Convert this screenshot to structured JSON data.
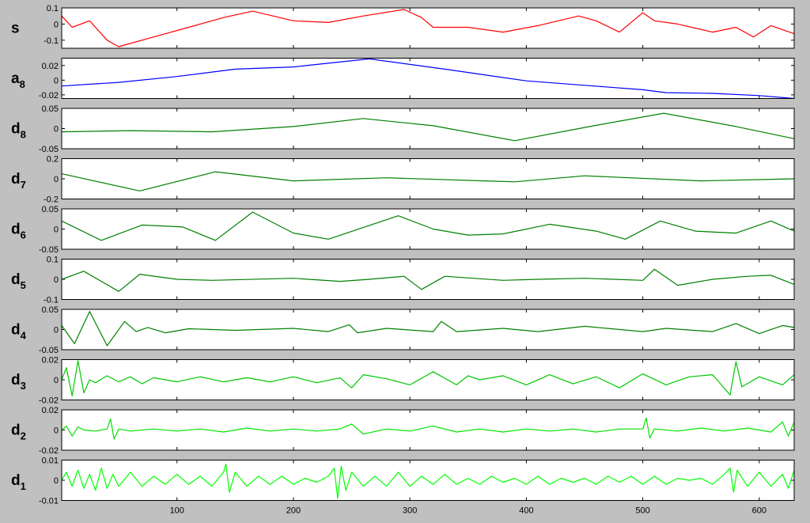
{
  "figure": {
    "background": "#c0c0c0",
    "axes_background": "#ffffff",
    "x_ticks": [
      100,
      200,
      300,
      400,
      500,
      600
    ],
    "x_range": [
      1,
      630
    ]
  },
  "chart_data": [
    {
      "type": "line",
      "label_main": "s",
      "label_sub": "",
      "color": "#ff0000",
      "yticks": [
        "0.1",
        "0",
        "-0.1"
      ],
      "ytick_values": [
        0.1,
        0,
        -0.1
      ],
      "ylim": [
        -0.15,
        0.1
      ],
      "xlim": [
        1,
        630
      ],
      "x": [
        1,
        10,
        25,
        40,
        50,
        80,
        110,
        140,
        165,
        200,
        230,
        260,
        295,
        310,
        320,
        350,
        380,
        410,
        445,
        460,
        480,
        500,
        510,
        530,
        560,
        580,
        595,
        610,
        630
      ],
      "y": [
        0.05,
        -0.02,
        0.02,
        -0.1,
        -0.14,
        -0.08,
        -0.02,
        0.04,
        0.08,
        0.02,
        0.01,
        0.05,
        0.09,
        0.04,
        -0.02,
        -0.02,
        -0.05,
        -0.01,
        0.05,
        0.02,
        -0.05,
        0.07,
        0.02,
        0.0,
        -0.05,
        -0.02,
        -0.08,
        -0.01,
        -0.06
      ]
    },
    {
      "type": "line",
      "label_main": "a",
      "label_sub": "8",
      "color": "#0000ff",
      "yticks": [
        "0.02",
        "0",
        "-0.02"
      ],
      "ytick_values": [
        0.02,
        0,
        -0.02
      ],
      "ylim": [
        -0.025,
        0.03
      ],
      "xlim": [
        1,
        630
      ],
      "x": [
        1,
        50,
        100,
        150,
        200,
        265,
        330,
        400,
        450,
        500,
        520,
        560,
        600,
        630
      ],
      "y": [
        -0.008,
        -0.003,
        0.005,
        0.015,
        0.018,
        0.029,
        0.015,
        -0.001,
        -0.007,
        -0.013,
        -0.017,
        -0.018,
        -0.021,
        -0.025
      ]
    },
    {
      "type": "line",
      "label_main": "d",
      "label_sub": "8",
      "color": "#008000",
      "yticks": [
        "0.05",
        "0",
        "-0.05"
      ],
      "ytick_values": [
        0.05,
        0,
        -0.05
      ],
      "ylim": [
        -0.05,
        0.05
      ],
      "xlim": [
        1,
        630
      ],
      "x": [
        1,
        60,
        130,
        200,
        260,
        320,
        390,
        460,
        518,
        580,
        630
      ],
      "y": [
        -0.008,
        -0.005,
        -0.008,
        0.005,
        0.025,
        0.007,
        -0.03,
        0.008,
        0.038,
        0.005,
        -0.025
      ]
    },
    {
      "type": "line",
      "label_main": "d",
      "label_sub": "7",
      "color": "#008000",
      "yticks": [
        "0.2",
        "0",
        "-0.2"
      ],
      "ytick_values": [
        0.2,
        0,
        -0.2
      ],
      "ylim": [
        -0.2,
        0.2
      ],
      "xlim": [
        1,
        630
      ],
      "x": [
        1,
        68,
        133,
        200,
        280,
        390,
        450,
        550,
        630
      ],
      "y": [
        0.05,
        -0.12,
        0.07,
        -0.02,
        0.01,
        -0.03,
        0.03,
        -0.02,
        0.0
      ]
    },
    {
      "type": "line",
      "label_main": "d",
      "label_sub": "6",
      "color": "#008000",
      "yticks": [
        "0.05",
        "0",
        "-0.05"
      ],
      "ytick_values": [
        0.05,
        0,
        -0.05
      ],
      "ylim": [
        -0.05,
        0.05
      ],
      "xlim": [
        1,
        630
      ],
      "x": [
        1,
        35,
        70,
        105,
        133,
        165,
        200,
        230,
        290,
        320,
        350,
        380,
        420,
        460,
        485,
        515,
        545,
        580,
        610,
        630
      ],
      "y": [
        0.02,
        -0.028,
        0.01,
        0.005,
        -0.028,
        0.042,
        -0.01,
        -0.025,
        0.033,
        0.0,
        -0.015,
        -0.012,
        0.012,
        -0.005,
        -0.025,
        0.02,
        -0.005,
        -0.01,
        0.02,
        -0.005
      ]
    },
    {
      "type": "line",
      "label_main": "d",
      "label_sub": "5",
      "color": "#008000",
      "yticks": [
        "0.1",
        "0",
        "-0.1"
      ],
      "ytick_values": [
        0.1,
        0,
        -0.1
      ],
      "ylim": [
        -0.1,
        0.1
      ],
      "xlim": [
        1,
        630
      ],
      "x": [
        1,
        20,
        50,
        68,
        100,
        130,
        200,
        240,
        265,
        295,
        310,
        330,
        380,
        410,
        450,
        500,
        510,
        530,
        560,
        590,
        610,
        630
      ],
      "y": [
        0.0,
        0.04,
        -0.06,
        0.025,
        0.0,
        -0.005,
        0.005,
        -0.01,
        0.0,
        0.015,
        -0.05,
        0.015,
        -0.005,
        0.0,
        0.005,
        -0.005,
        0.05,
        -0.03,
        0.0,
        0.015,
        0.02,
        -0.025
      ]
    },
    {
      "type": "line",
      "label_main": "d",
      "label_sub": "4",
      "color": "#008000",
      "yticks": [
        "0.05",
        "0",
        "-0.05"
      ],
      "ytick_values": [
        0.05,
        0,
        -0.05
      ],
      "ylim": [
        -0.05,
        0.05
      ],
      "xlim": [
        1,
        630
      ],
      "x": [
        1,
        12,
        25,
        40,
        55,
        65,
        75,
        90,
        110,
        150,
        200,
        230,
        248,
        255,
        280,
        320,
        327,
        340,
        380,
        410,
        450,
        500,
        520,
        560,
        580,
        600,
        620,
        630
      ],
      "y": [
        0.01,
        -0.035,
        0.045,
        -0.04,
        0.02,
        -0.005,
        0.005,
        -0.008,
        0.002,
        -0.002,
        0.003,
        -0.005,
        0.012,
        -0.008,
        0.003,
        -0.005,
        0.02,
        -0.005,
        0.003,
        -0.005,
        0.008,
        -0.005,
        0.003,
        -0.005,
        0.015,
        -0.01,
        0.01,
        0.005
      ]
    },
    {
      "type": "line",
      "label_main": "d",
      "label_sub": "3",
      "color": "#00c800",
      "yticks": [
        "0.02",
        "0",
        "-0.02"
      ],
      "ytick_values": [
        0.02,
        0,
        -0.02
      ],
      "ylim": [
        -0.02,
        0.02
      ],
      "xlim": [
        1,
        630
      ],
      "x": [
        1,
        5,
        10,
        15,
        20,
        25,
        30,
        40,
        50,
        60,
        70,
        80,
        100,
        120,
        140,
        160,
        180,
        200,
        220,
        240,
        250,
        260,
        280,
        300,
        320,
        340,
        350,
        360,
        380,
        400,
        420,
        440,
        460,
        480,
        500,
        520,
        540,
        560,
        575,
        580,
        585,
        600,
        620,
        630
      ],
      "y": [
        0.0,
        0.012,
        -0.016,
        0.019,
        -0.013,
        0.0,
        -0.003,
        0.004,
        -0.002,
        0.003,
        -0.004,
        0.002,
        -0.002,
        0.003,
        -0.002,
        0.002,
        -0.002,
        0.003,
        -0.003,
        0.002,
        -0.008,
        0.005,
        0.001,
        -0.005,
        0.008,
        -0.005,
        0.004,
        0.0,
        0.004,
        -0.005,
        0.005,
        -0.004,
        0.003,
        -0.008,
        0.006,
        -0.005,
        0.003,
        0.005,
        -0.015,
        0.018,
        -0.007,
        0.003,
        -0.005,
        0.005
      ]
    },
    {
      "type": "line",
      "label_main": "d",
      "label_sub": "2",
      "color": "#00e400",
      "yticks": [
        "0.02",
        "0",
        "-0.02"
      ],
      "ytick_values": [
        0.02,
        0,
        -0.02
      ],
      "ylim": [
        -0.02,
        0.02
      ],
      "xlim": [
        1,
        630
      ],
      "x": [
        1,
        5,
        10,
        15,
        20,
        30,
        40,
        43,
        46,
        50,
        60,
        80,
        100,
        120,
        140,
        160,
        180,
        200,
        220,
        240,
        250,
        260,
        280,
        300,
        320,
        340,
        360,
        380,
        400,
        420,
        440,
        460,
        480,
        500,
        503,
        506,
        510,
        530,
        550,
        570,
        590,
        610,
        620,
        625,
        630
      ],
      "y": [
        0.0,
        0.004,
        -0.006,
        0.003,
        0.0,
        -0.001,
        0.001,
        0.011,
        -0.009,
        0.001,
        -0.001,
        0.001,
        -0.001,
        0.001,
        -0.002,
        0.002,
        -0.001,
        0.001,
        -0.001,
        0.001,
        0.006,
        -0.004,
        0.001,
        -0.001,
        0.004,
        -0.002,
        0.001,
        -0.002,
        0.001,
        -0.001,
        0.001,
        -0.002,
        0.001,
        0.001,
        0.012,
        -0.008,
        0.001,
        -0.001,
        0.002,
        -0.001,
        0.002,
        -0.002,
        0.008,
        -0.006,
        0.008
      ]
    },
    {
      "type": "line",
      "label_main": "d",
      "label_sub": "1",
      "color": "#00ff00",
      "yticks": [
        "0.01",
        "0",
        "-0.01"
      ],
      "ytick_values": [
        0.01,
        0,
        -0.01
      ],
      "ylim": [
        -0.01,
        0.01
      ],
      "xlim": [
        1,
        630
      ],
      "x": [
        1,
        5,
        10,
        15,
        20,
        25,
        30,
        35,
        40,
        45,
        50,
        60,
        70,
        80,
        90,
        100,
        110,
        120,
        130,
        140,
        142,
        145,
        150,
        160,
        170,
        180,
        190,
        200,
        210,
        220,
        230,
        235,
        238,
        241,
        245,
        250,
        260,
        270,
        280,
        290,
        300,
        310,
        320,
        330,
        340,
        350,
        360,
        370,
        380,
        390,
        400,
        410,
        420,
        430,
        440,
        450,
        460,
        470,
        480,
        490,
        500,
        510,
        520,
        530,
        540,
        550,
        560,
        570,
        575,
        578,
        581,
        590,
        600,
        610,
        620,
        625,
        630
      ],
      "y": [
        0.0,
        0.004,
        -0.003,
        0.005,
        -0.004,
        0.003,
        -0.005,
        0.006,
        -0.004,
        0.003,
        -0.003,
        0.004,
        -0.003,
        0.002,
        -0.002,
        0.003,
        -0.002,
        0.002,
        -0.003,
        0.004,
        0.008,
        -0.006,
        0.004,
        -0.003,
        0.002,
        -0.002,
        0.002,
        -0.002,
        0.001,
        -0.001,
        0.002,
        0.006,
        -0.009,
        0.007,
        -0.005,
        0.004,
        -0.003,
        0.002,
        -0.003,
        0.004,
        -0.003,
        0.002,
        -0.002,
        0.003,
        -0.002,
        0.001,
        -0.002,
        0.002,
        -0.001,
        0.001,
        -0.002,
        0.002,
        -0.002,
        0.001,
        -0.001,
        0.001,
        -0.002,
        0.002,
        -0.001,
        0.002,
        -0.002,
        0.002,
        -0.002,
        0.001,
        0.0,
        0.001,
        -0.002,
        0.003,
        0.006,
        -0.006,
        0.005,
        -0.003,
        0.004,
        -0.003,
        0.003,
        -0.004,
        0.005
      ]
    }
  ]
}
